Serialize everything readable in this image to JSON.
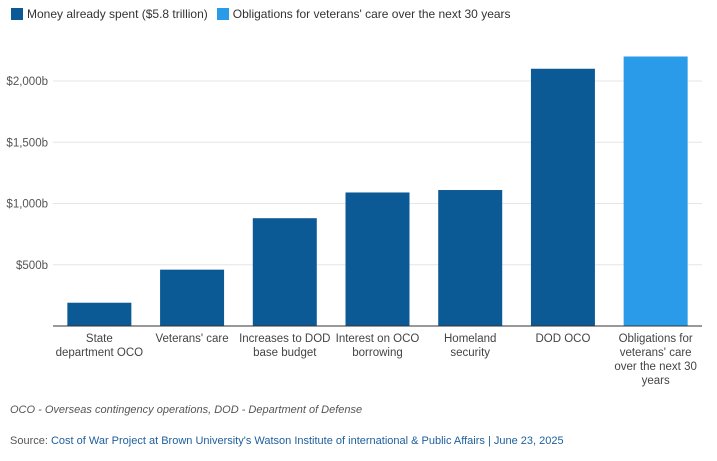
{
  "chart_data": {
    "type": "bar",
    "title": "",
    "xlabel": "",
    "ylabel": "",
    "ylim": [
      0,
      2200
    ],
    "yticks": [
      500,
      1000,
      1500,
      2000
    ],
    "ytick_labels": [
      "$500b",
      "$1,000b",
      "$1,500b",
      "$2,000b"
    ],
    "grid": true,
    "legend_position": "top-left",
    "categories": [
      [
        "State",
        "department OCO"
      ],
      [
        "Veterans' care"
      ],
      [
        "Increases to DOD",
        "base budget"
      ],
      [
        "Interest on OCO",
        "borrowing"
      ],
      [
        "Homeland",
        "security"
      ],
      [
        "DOD OCO"
      ],
      [
        "Obligations for",
        "veterans' care",
        "over the next 30",
        "years"
      ]
    ],
    "values": [
      190,
      460,
      880,
      1090,
      1110,
      2100,
      2200
    ],
    "series_index": [
      0,
      0,
      0,
      0,
      0,
      0,
      1
    ],
    "series": [
      {
        "name": "Money already spent ($5.8 trillion)",
        "color": "#0b5a96"
      },
      {
        "name": "Obligations for veterans' care over the next 30 years",
        "color": "#2a9be8"
      }
    ],
    "units": "billions USD"
  },
  "footnote": "OCO - Overseas contingency operations, DOD - Department of Defense",
  "source": {
    "prefix": "Source: ",
    "link_text": "Cost of War Project at Brown University's Watson Institute of international & Public Affairs | June 23, 2025"
  },
  "colors": {
    "grid": "#e6e6e6",
    "axis": "#333333"
  }
}
